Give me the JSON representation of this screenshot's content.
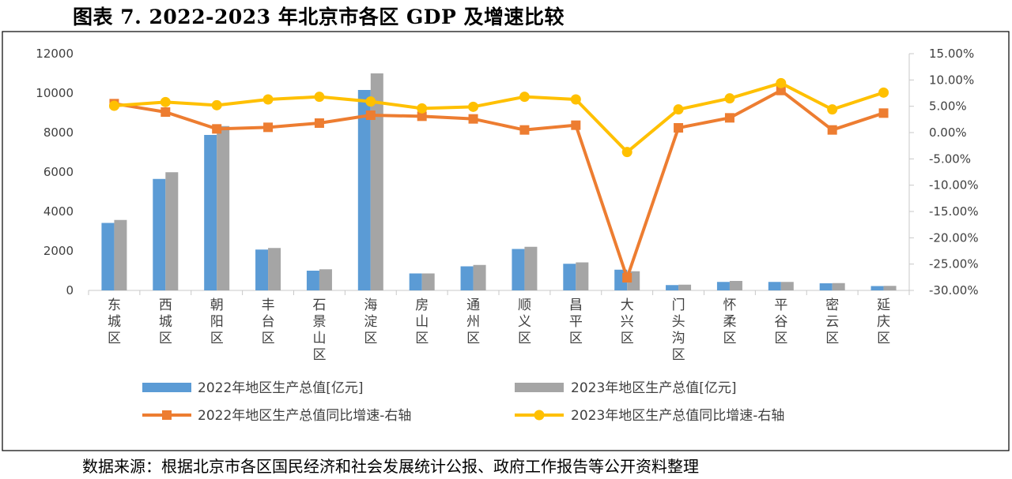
{
  "title": "图表 7.   2022-2023 年北京市各区 GDP 及增速比较",
  "source": "数据来源：根据北京市各区国民经济和社会发展统计公报、政府工作报告等公开资料整理",
  "chart_data": {
    "type": "bar",
    "title": "",
    "categories": [
      "东城区",
      "西城区",
      "朝阳区",
      "丰台区",
      "石景山区",
      "海淀区",
      "房山区",
      "通州区",
      "顺义区",
      "昌平区",
      "大兴区",
      "门头沟区",
      "怀柔区",
      "平谷区",
      "密云区",
      "延庆区"
    ],
    "category_lines": [
      [
        "东",
        "城",
        "区"
      ],
      [
        "西",
        "城",
        "区"
      ],
      [
        "朝",
        "阳",
        "区"
      ],
      [
        "丰",
        "台",
        "区"
      ],
      [
        "石",
        "景",
        "山",
        "区"
      ],
      [
        "海",
        "淀",
        "区"
      ],
      [
        "房",
        "山",
        "区"
      ],
      [
        "通",
        "州",
        "区"
      ],
      [
        "顺",
        "义",
        "区"
      ],
      [
        "昌",
        "平",
        "区"
      ],
      [
        "大",
        "兴",
        "区"
      ],
      [
        "门",
        "头",
        "沟",
        "区"
      ],
      [
        "怀",
        "柔",
        "区"
      ],
      [
        "平",
        "谷",
        "区"
      ],
      [
        "密",
        "云",
        "区"
      ],
      [
        "延",
        "庆",
        "区"
      ]
    ],
    "y_left": {
      "min": 0,
      "max": 12000,
      "step": 2000,
      "ticks": [
        "0",
        "2000",
        "4000",
        "6000",
        "8000",
        "10000",
        "12000"
      ]
    },
    "y_right": {
      "min": -30,
      "max": 15,
      "step": 5,
      "ticks": [
        "-30.00%",
        "-25.00%",
        "-20.00%",
        "-15.00%",
        "-10.00%",
        "-5.00%",
        "0.00%",
        "5.00%",
        "10.00%",
        "15.00%"
      ]
    },
    "grid": false,
    "legend_position": "bottom",
    "series": [
      {
        "name": "2022年地区生产总值[亿元]",
        "type": "bar",
        "axis": "left",
        "color": "#5B9BD5",
        "values": [
          3420,
          5650,
          7880,
          2070,
          1000,
          10160,
          860,
          1220,
          2100,
          1350,
          1050,
          270,
          430,
          430,
          360,
          220
        ]
      },
      {
        "name": "2023年地区生产总值[亿元]",
        "type": "bar",
        "axis": "left",
        "color": "#A5A5A5",
        "values": [
          3570,
          5990,
          8330,
          2150,
          1070,
          11000,
          860,
          1290,
          2210,
          1420,
          970,
          290,
          480,
          430,
          370,
          230
        ]
      },
      {
        "name": "2022年地区生产总值同比增速-右轴",
        "type": "line",
        "axis": "right",
        "color": "#ED7D31",
        "marker": "square",
        "values": [
          5.5,
          3.9,
          0.7,
          1.0,
          1.8,
          3.3,
          3.1,
          2.6,
          0.5,
          1.4,
          -27.6,
          0.9,
          2.8,
          8.0,
          0.5,
          3.7
        ]
      },
      {
        "name": "2023年地区生产总值同比增速-右轴",
        "type": "line",
        "axis": "right",
        "color": "#FFC000",
        "marker": "circle",
        "values": [
          5.1,
          5.8,
          5.2,
          6.3,
          6.8,
          5.9,
          4.6,
          4.9,
          6.8,
          6.3,
          -3.7,
          4.4,
          6.5,
          9.4,
          4.4,
          7.6
        ]
      }
    ]
  }
}
